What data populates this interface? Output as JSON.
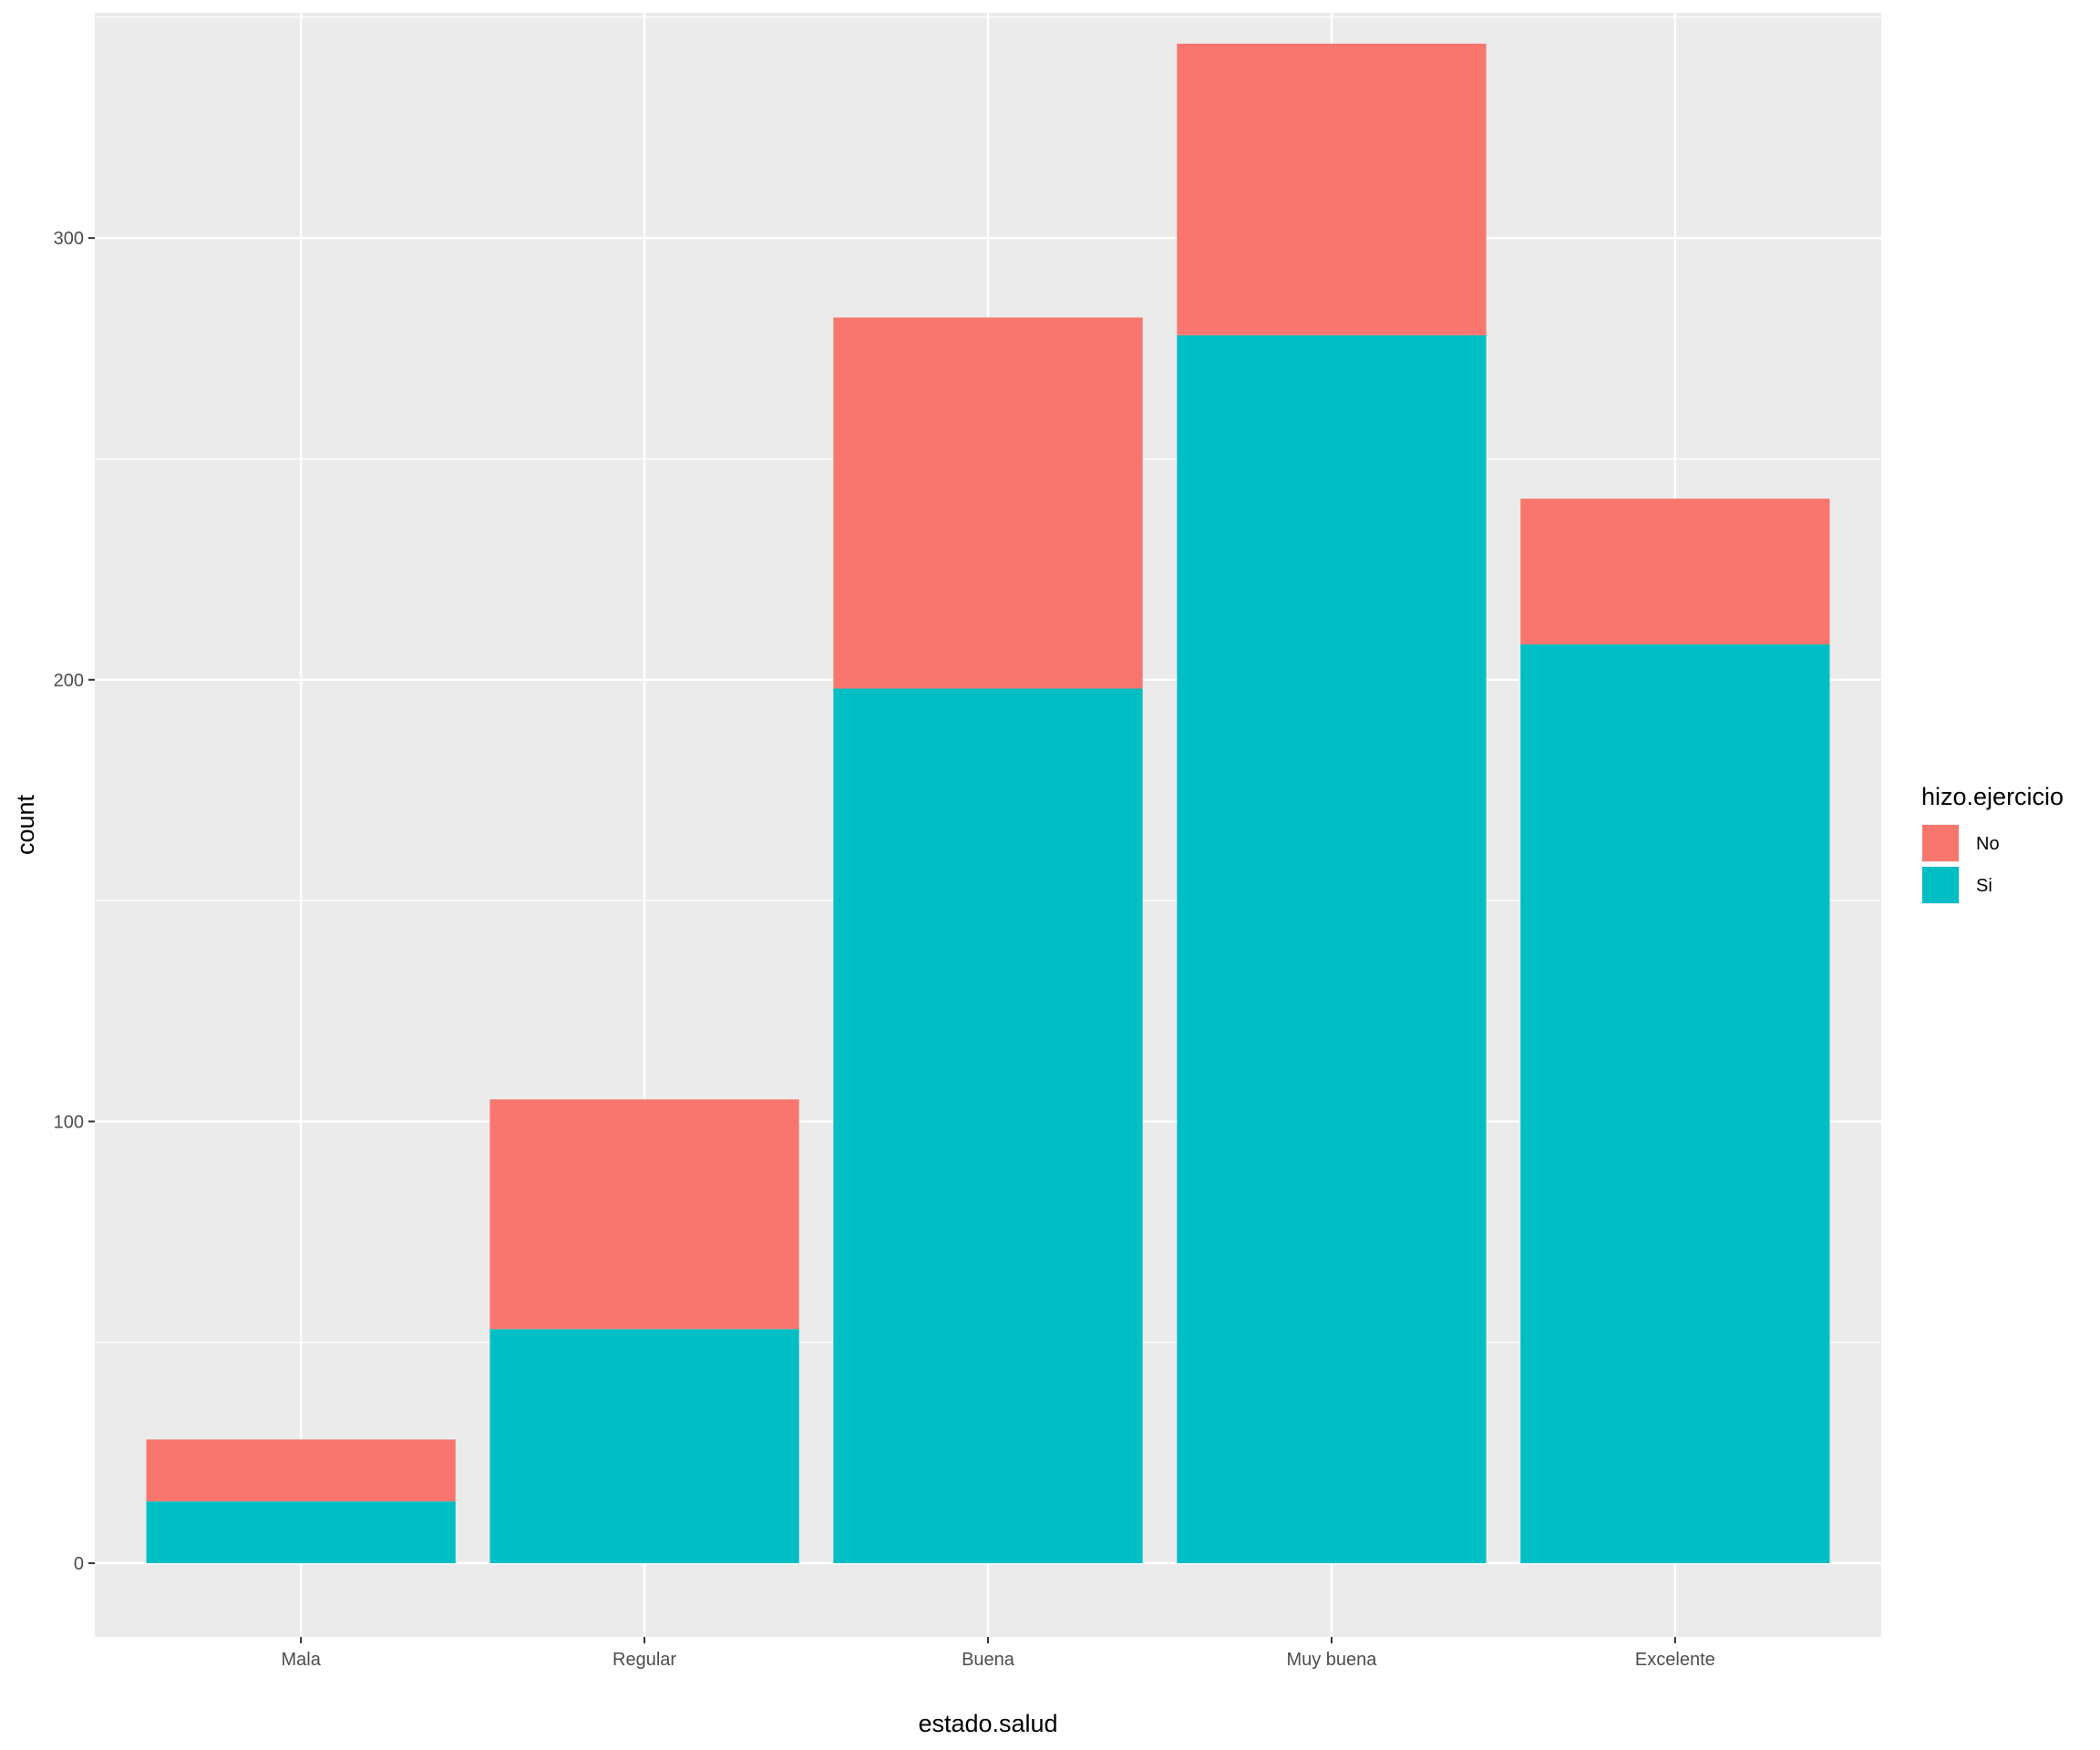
{
  "chart_data": {
    "type": "bar",
    "stacked": true,
    "categories": [
      "Mala",
      "Regular",
      "Buena",
      "Muy buena",
      "Excelente"
    ],
    "series": [
      {
        "name": "No",
        "color": "#F8766D",
        "values": [
          14,
          52,
          84,
          66,
          33
        ]
      },
      {
        "name": "Si",
        "color": "#00BFC4",
        "values": [
          14,
          53,
          198,
          278,
          208
        ]
      }
    ],
    "xlabel": "estado.salud",
    "ylabel": "count",
    "ylim": [
      -16.7,
      351
    ],
    "yticks": [
      0,
      100,
      200,
      300
    ],
    "ytick_labels": [
      "0",
      "100",
      "200",
      "300"
    ],
    "legend": {
      "title": "hizo.ejercicio",
      "placement": "right"
    },
    "grid": true,
    "panel_background": "#EBEBEB",
    "grid_color": "#FFFFFF"
  }
}
